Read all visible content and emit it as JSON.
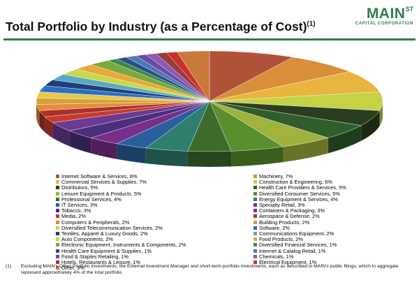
{
  "header": {
    "title": "Total Portfolio by Industry (as a Percentage of Cost)",
    "title_note": "(1)"
  },
  "logo": {
    "main": "MAIN",
    "superscript": "ST",
    "sub": "CAPITAL CORPORATION"
  },
  "footnote": {
    "number": "(1)",
    "text": "Excluding MAIN's Other Portfolio investments, the External Investment Manager and short-term portfolio investments, each as described in MAIN's public filings, which in aggregate represent approximately 4% of the total portfolio"
  },
  "colors": {
    "brand_green": "#2e7d4a"
  },
  "chart_data": {
    "type": "pie",
    "slices": [
      {
        "label": "Internet Software & Services, 8%",
        "name": "Internet Software & Services",
        "value": 8,
        "color": "#b0523a"
      },
      {
        "label": "Machinery, 7%",
        "name": "Machinery",
        "value": 7,
        "color": "#d98e3a"
      },
      {
        "label": "Commercial Services & Supplies, 7%",
        "name": "Commercial Services & Supplies",
        "value": 7,
        "color": "#e8b53e"
      },
      {
        "label": "Construction & Engineering, 6%",
        "name": "Construction & Engineering",
        "value": 6,
        "color": "#c4d244"
      },
      {
        "label": "Distributors, 5%",
        "name": "Distributors",
        "value": 5,
        "color": "#2a3d1e"
      },
      {
        "label": "Health Care Providers & Services, 5%",
        "name": "Health Care Providers & Services",
        "value": 5,
        "color": "#2f5e2c"
      },
      {
        "label": "Leisure Equipment & Products, 5%",
        "name": "Leisure Equipment & Products",
        "value": 5,
        "color": "#9eb23c"
      },
      {
        "label": "Diversified Consumer Services, 5%",
        "name": "Diversified Consumer Services",
        "value": 5,
        "color": "#5a8f2e"
      },
      {
        "label": "Professional Services, 4%",
        "name": "Professional Services",
        "value": 4,
        "color": "#3d6b2a"
      },
      {
        "label": "Energy Equipment & Services, 4%",
        "name": "Energy Equipment & Services",
        "value": 4,
        "color": "#2f7f6e"
      },
      {
        "label": "IT Services, 3%",
        "name": "IT Services",
        "value": 3,
        "color": "#2a5f9e"
      },
      {
        "label": "Specialty Retail, 3%",
        "name": "Specialty Retail",
        "value": 3,
        "color": "#7a2e8c"
      },
      {
        "label": "Tobacco, 3%",
        "name": "Tobacco",
        "value": 3,
        "color": "#4a2f7a"
      },
      {
        "label": "Containers & Packaging, 3%",
        "name": "Containers & Packaging",
        "value": 3,
        "color": "#6a3a94"
      },
      {
        "label": "Media, 2%",
        "name": "Media",
        "value": 2,
        "color": "#c83a2e"
      },
      {
        "label": "Aerospace & Defense, 2%",
        "name": "Aerospace & Defense",
        "value": 2,
        "color": "#a8322a"
      },
      {
        "label": "Computers & Peripherals, 2%",
        "name": "Computers & Peripherals",
        "value": 2,
        "color": "#e88c3a"
      },
      {
        "label": "Building Products, 2%",
        "name": "Building Products",
        "value": 2,
        "color": "#d4a23a"
      },
      {
        "label": "Diversified Telecommunication Services, 2%",
        "name": "Diversified Telecommunication Services",
        "value": 2,
        "color": "#e6c84a"
      },
      {
        "label": "Software, 2%",
        "name": "Software",
        "value": 2,
        "color": "#2a6fc4"
      },
      {
        "label": "Textiles, Apparel & Luxury Goods, 2%",
        "name": "Textiles, Apparel & Luxury Goods",
        "value": 2,
        "color": "#1f3f7a"
      },
      {
        "label": "Communications Equipment, 2%",
        "name": "Communications Equipment",
        "value": 2,
        "color": "#5aa8c4"
      },
      {
        "label": "Auto Components, 2%",
        "name": "Auto Components",
        "value": 2,
        "color": "#c8d84a"
      },
      {
        "label": "Food Products, 2%",
        "name": "Food Products",
        "value": 2,
        "color": "#e8a83a"
      },
      {
        "label": "Electronic Equipment, Instruments & Components, 2%",
        "name": "Electronic Equipment, Instruments & Components",
        "value": 2,
        "color": "#7fa83a"
      },
      {
        "label": "Diversified Financial Services, 1%",
        "name": "Diversified Financial Services",
        "value": 1,
        "color": "#3a8a4a"
      },
      {
        "label": "Health Care Equipment & Supplies, 1%",
        "name": "Health Care Equipment & Supplies",
        "value": 1,
        "color": "#2a4e8a"
      },
      {
        "label": "Internet & Catalog Retail, 1%",
        "name": "Internet & Catalog Retail",
        "value": 1,
        "color": "#4a7ab4"
      },
      {
        "label": "Food & Staples Retailing, 1%",
        "name": "Food & Staples Retailing",
        "value": 1,
        "color": "#6a4aa4"
      },
      {
        "label": "Chemicals, 1%",
        "name": "Chemicals",
        "value": 1,
        "color": "#8a5ab4"
      },
      {
        "label": "Hotels, Restaurants & Leisure, 1%",
        "name": "Hotels, Restaurants & Leisure",
        "value": 1,
        "color": "#9a3a3a"
      },
      {
        "label": "Electrical Equipment, 1%",
        "name": "Electrical Equipment",
        "value": 1,
        "color": "#c8302a"
      },
      {
        "label": "Other, 3%",
        "name": "Other",
        "value": 3,
        "color": "#c87a3a"
      }
    ],
    "legend_layout": "two-column, below chart"
  }
}
